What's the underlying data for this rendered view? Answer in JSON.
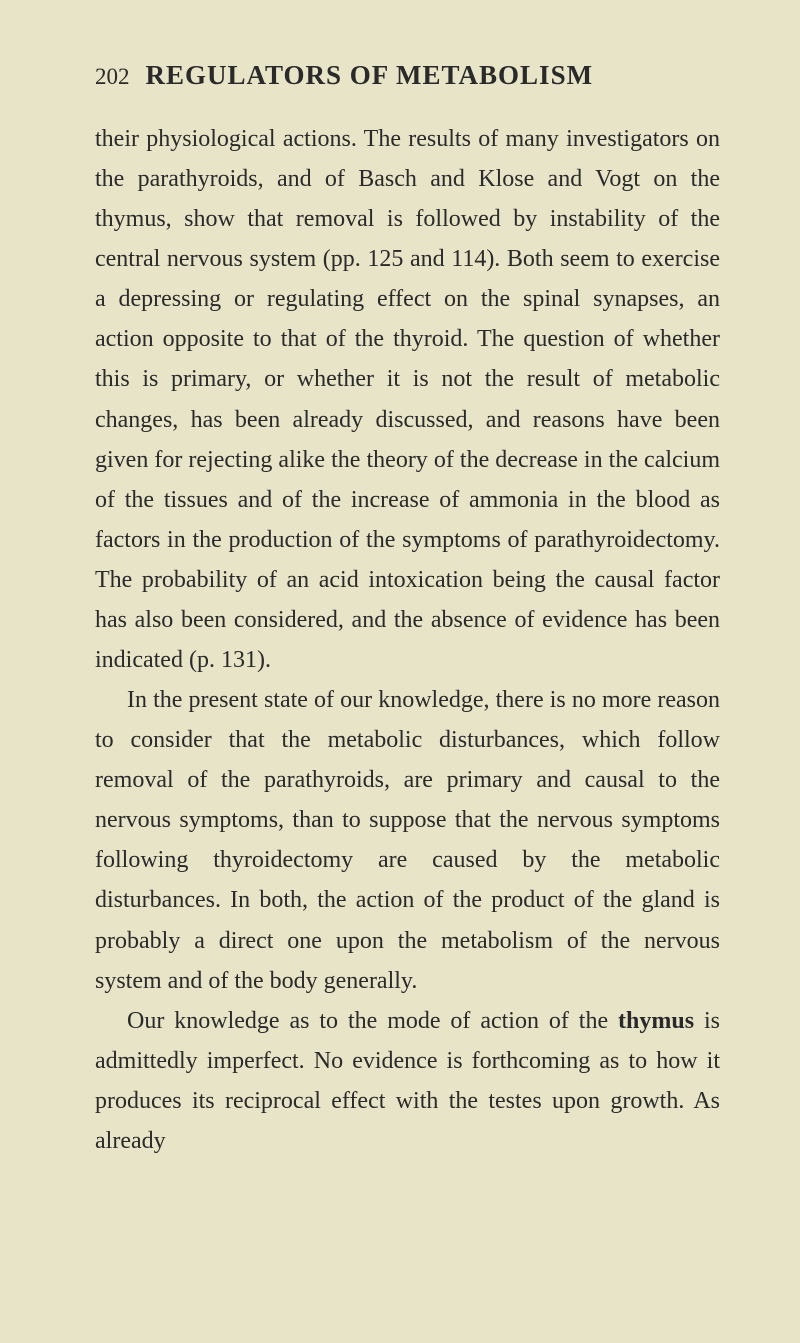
{
  "header": {
    "page_number": "202",
    "title": "REGULATORS OF METABOLISM"
  },
  "paragraphs": {
    "p1": "their physiological actions. The results of many investigators on the parathyroids, and of Basch and Klose and Vogt on the thymus, show that removal is followed by instability of the central nervous system (pp. 125 and 114). Both seem to exercise a depressing or regulating effect on the spinal synapses, an action opposite to that of the thyroid. The question of whether this is primary, or whether it is not the result of metabolic changes, has been already discussed, and reasons have been given for rejecting alike the theory of the decrease in the calcium of the tissues and of the increase of ammonia in the blood as factors in the production of the symptoms of parathyroidectomy. The probability of an acid intoxication being the causal factor has also been considered, and the absence of evidence has been indicated (p. 131).",
    "p2": "In the present state of our knowledge, there is no more reason to consider that the metabolic disturbances, which follow removal of the parathyroids, are primary and causal to the nervous symptoms, than to suppose that the nervous symptoms following thyroidectomy are caused by the metabolic disturbances. In both, the action of the product of the gland is probably a direct one upon the metabolism of the nervous system and of the body generally.",
    "p3_start": "Our knowledge as to the mode of action of the ",
    "p3_bold": "thymus",
    "p3_end": " is admittedly imperfect. No evidence is forthcoming as to how it produces its reciprocal effect with the testes upon growth. As already"
  },
  "colors": {
    "background": "#e8e4c8",
    "text": "#2a2a2a"
  },
  "typography": {
    "body_fontsize": 24,
    "header_fontsize": 27,
    "page_number_fontsize": 23,
    "line_height": 1.67,
    "font_family": "Georgia, Times New Roman, serif"
  }
}
